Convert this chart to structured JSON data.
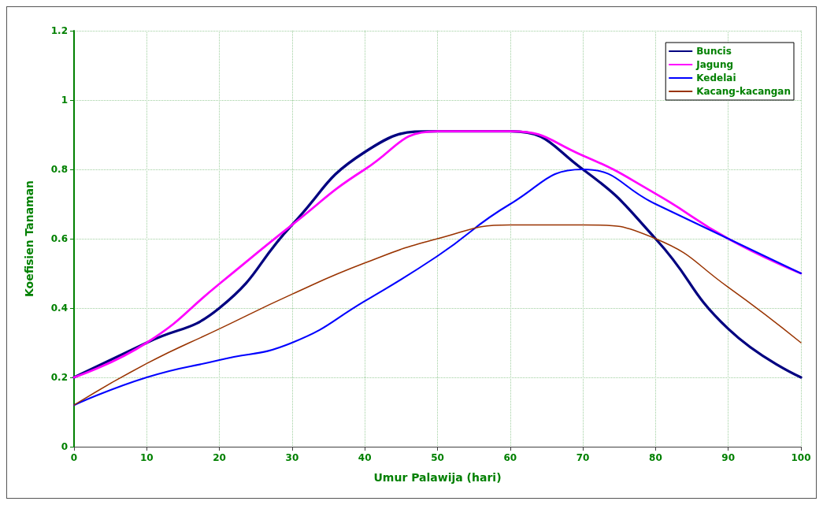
{
  "chart_data": {
    "type": "line",
    "xlabel": "Umur Palawija (hari)",
    "ylabel": "Koefisien Tanaman",
    "x": [
      0,
      10,
      20,
      30,
      40,
      50,
      60,
      70,
      80,
      90,
      100
    ],
    "series": [
      {
        "name": "Buncis",
        "color": "#000080",
        "values": [
          0.2,
          0.3,
          0.4,
          0.64,
          0.85,
          0.91,
          0.91,
          0.8,
          0.6,
          0.34,
          0.2
        ]
      },
      {
        "name": "Jagung",
        "color": "#ff00ff",
        "values": [
          0.2,
          0.3,
          0.47,
          0.64,
          0.8,
          0.91,
          0.91,
          0.84,
          0.73,
          0.6,
          0.5
        ]
      },
      {
        "name": "Kedelai",
        "color": "#0000ff",
        "values": [
          0.12,
          0.2,
          0.25,
          0.3,
          0.42,
          0.55,
          0.7,
          0.8,
          0.7,
          0.6,
          0.5
        ]
      },
      {
        "name": "Kacang-kacangan",
        "color": "#993300",
        "values": [
          0.12,
          0.24,
          0.34,
          0.44,
          0.53,
          0.6,
          0.64,
          0.64,
          0.6,
          0.46,
          0.3
        ]
      }
    ],
    "xlim": [
      0,
      100
    ],
    "xticks": [
      0,
      10,
      20,
      30,
      40,
      50,
      60,
      70,
      80,
      90,
      100
    ],
    "ylim": [
      0,
      1.2
    ],
    "yticks": [
      0,
      0.2,
      0.4,
      0.6,
      0.8,
      1,
      1.2
    ],
    "grid": true,
    "legend": "top right",
    "marker": "none",
    "line_style": "solid"
  }
}
